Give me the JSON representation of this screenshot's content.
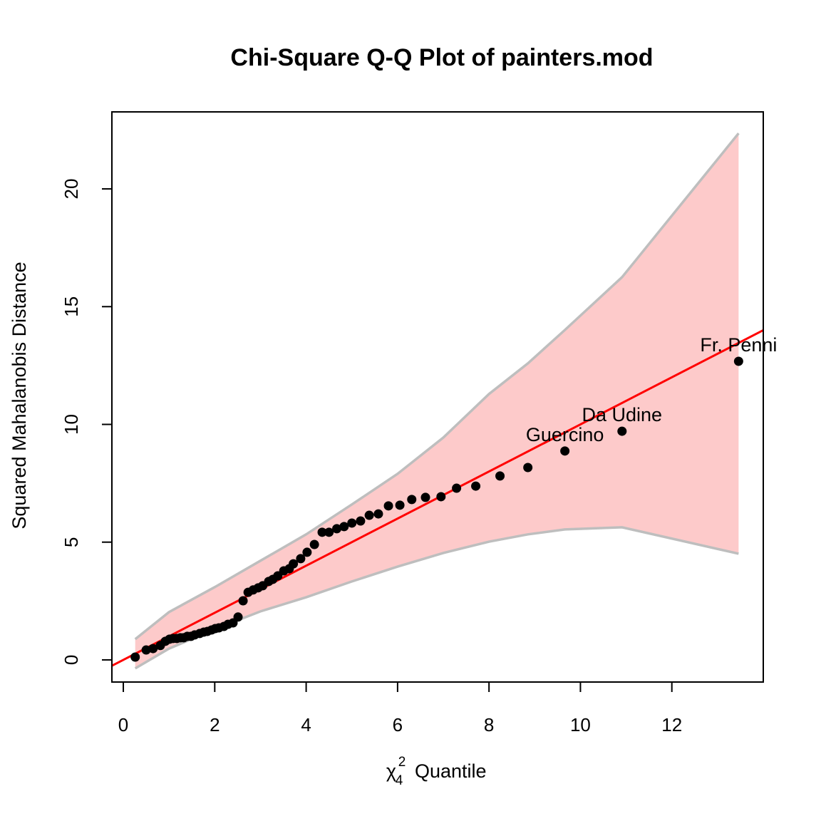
{
  "chart_data": {
    "type": "scatter",
    "title": "Chi-Square Q-Q Plot of painters.mod",
    "y_label": "Squared Mahalanobis Distance",
    "x_label": {
      "symbol": "χ",
      "superscript": "2",
      "subscript": "4",
      "text": "Quantile"
    },
    "xlim": [
      -0.25,
      14
    ],
    "ylim": [
      -0.94,
      23.27
    ],
    "xticks": [
      0,
      2,
      4,
      6,
      8,
      10,
      12
    ],
    "yticks": [
      0,
      5,
      10,
      15,
      20
    ],
    "color": "#000000",
    "x": [
      0.26,
      0.5,
      0.65,
      0.81,
      0.92,
      1.01,
      1.09,
      1.17,
      1.25,
      1.32,
      1.4,
      1.48,
      1.56,
      1.67,
      1.76,
      1.84,
      1.93,
      2.01,
      2.09,
      2.2,
      2.29,
      2.4,
      2.51,
      2.62,
      2.73,
      2.84,
      2.95,
      3.05,
      3.18,
      3.27,
      3.38,
      3.51,
      3.63,
      3.72,
      3.88,
      4.02,
      4.18,
      4.35,
      4.5,
      4.67,
      4.83,
      5.0,
      5.19,
      5.38,
      5.58,
      5.8,
      6.05,
      6.31,
      6.61,
      6.95,
      7.29,
      7.71,
      8.24,
      8.85,
      9.66,
      10.91,
      13.46
    ],
    "values": [
      0.12,
      0.42,
      0.48,
      0.61,
      0.79,
      0.88,
      0.91,
      0.91,
      0.94,
      0.94,
      1.0,
      1.0,
      1.06,
      1.12,
      1.18,
      1.21,
      1.27,
      1.33,
      1.36,
      1.42,
      1.51,
      1.57,
      1.82,
      2.51,
      2.87,
      2.97,
      3.06,
      3.15,
      3.33,
      3.42,
      3.57,
      3.78,
      3.87,
      4.08,
      4.3,
      4.57,
      4.9,
      5.42,
      5.42,
      5.57,
      5.66,
      5.81,
      5.9,
      6.14,
      6.2,
      6.54,
      6.57,
      6.81,
      6.9,
      6.93,
      7.29,
      7.38,
      7.81,
      8.17,
      8.87,
      9.71,
      12.68
    ],
    "point_labels": [
      null,
      null,
      null,
      null,
      null,
      null,
      null,
      null,
      null,
      null,
      null,
      null,
      null,
      null,
      null,
      null,
      null,
      null,
      null,
      null,
      null,
      null,
      null,
      null,
      null,
      null,
      null,
      null,
      null,
      null,
      null,
      null,
      null,
      null,
      null,
      null,
      null,
      null,
      null,
      null,
      null,
      null,
      null,
      null,
      null,
      null,
      null,
      null,
      null,
      null,
      null,
      null,
      null,
      null,
      "Guercino",
      "Da Udine",
      "Fr. Penni"
    ],
    "reference_line": {
      "intercept": 0,
      "slope": 1,
      "color": "#ff0000"
    },
    "envelope": {
      "fill": "#fdcaca",
      "color": "#bebebe",
      "x": [
        0.26,
        1,
        2,
        3,
        4,
        5,
        6,
        7,
        8,
        8.85,
        9.66,
        10.91,
        13.46
      ],
      "upper": [
        0.88,
        2.03,
        3.09,
        4.21,
        5.33,
        6.6,
        7.9,
        9.44,
        11.29,
        12.59,
        14.01,
        16.25,
        22.36
      ],
      "lower": [
        -0.36,
        0.48,
        1.3,
        2.06,
        2.66,
        3.33,
        3.96,
        4.54,
        5.02,
        5.33,
        5.54,
        5.63,
        4.51
      ]
    }
  }
}
